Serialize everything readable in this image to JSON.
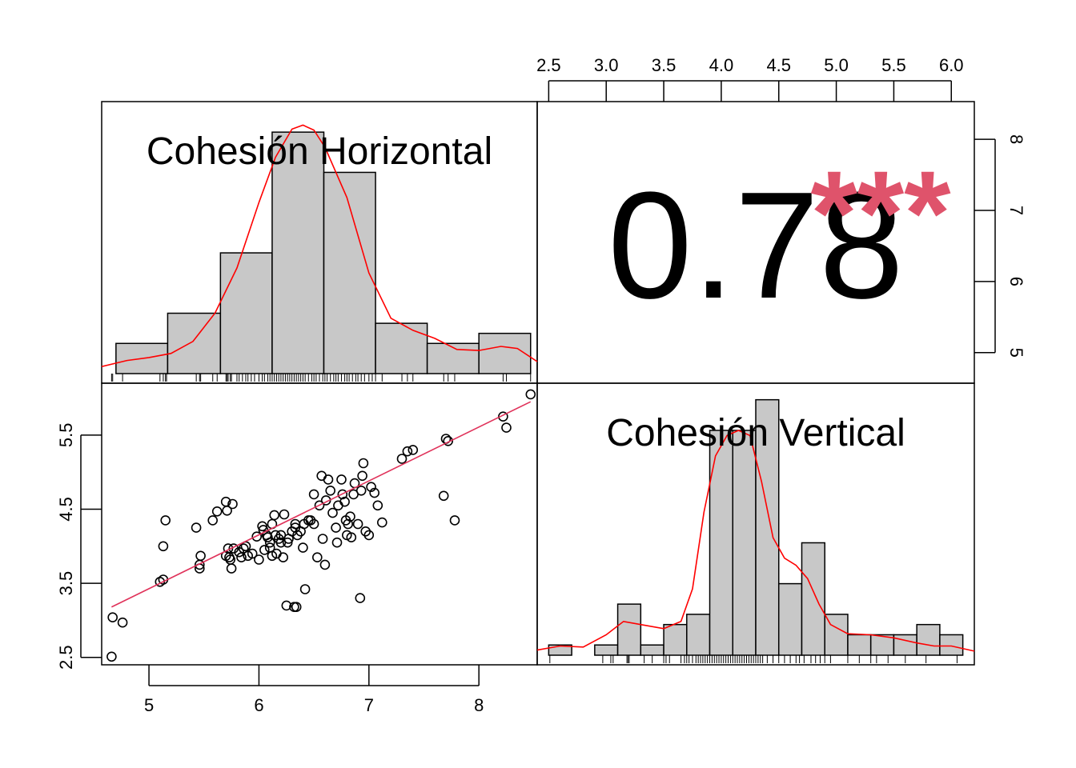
{
  "chart_data": {
    "type": "scatter-matrix",
    "variables": [
      "Cohesión Horizontal",
      "Cohesión Vertical"
    ],
    "correlation": {
      "value": "0.78",
      "stars": "***",
      "star_color": "#DF536B"
    },
    "colors": {
      "bar_fill": "#C8C8C8",
      "density": "#FF0000",
      "fit_line": "#DF536B",
      "points": "#000000"
    },
    "top_axis": {
      "ticks": [
        "2.5",
        "3.0",
        "3.5",
        "4.0",
        "4.5",
        "5.0",
        "5.5",
        "6.0"
      ],
      "range": [
        2.4,
        6.2
      ]
    },
    "right_axis": {
      "ticks": [
        "5",
        "6",
        "7",
        "8"
      ],
      "range": [
        4.57,
        8.53
      ]
    },
    "bottom_axis": {
      "ticks": [
        "5",
        "6",
        "7",
        "8"
      ],
      "range": [
        4.57,
        8.53
      ]
    },
    "left_axis": {
      "ticks": [
        "2.5",
        "3.5",
        "4.5",
        "5.5"
      ],
      "range": [
        2.4,
        6.2
      ]
    },
    "hist_horizontal": {
      "breaks": [
        4.7,
        5.17,
        5.65,
        6.12,
        6.59,
        7.06,
        7.53,
        8.0,
        8.47
      ],
      "counts": [
        3,
        6,
        12,
        24,
        20,
        5,
        3,
        4
      ],
      "count_max": 26,
      "density_curve": [
        [
          4.57,
          0.7
        ],
        [
          4.8,
          1.3
        ],
        [
          5.0,
          1.6
        ],
        [
          5.2,
          2.0
        ],
        [
          5.4,
          3.2
        ],
        [
          5.6,
          6.0
        ],
        [
          5.8,
          10.5
        ],
        [
          6.0,
          17.0
        ],
        [
          6.15,
          21.5
        ],
        [
          6.3,
          24.3
        ],
        [
          6.4,
          24.7
        ],
        [
          6.5,
          24.2
        ],
        [
          6.6,
          22.5
        ],
        [
          6.8,
          17.5
        ],
        [
          7.0,
          10.0
        ],
        [
          7.2,
          5.5
        ],
        [
          7.4,
          4.3
        ],
        [
          7.6,
          3.5
        ],
        [
          7.8,
          2.4
        ],
        [
          8.0,
          2.3
        ],
        [
          8.2,
          2.7
        ],
        [
          8.35,
          2.5
        ],
        [
          8.53,
          1.2
        ]
      ],
      "rug": [
        4.66,
        4.67,
        4.76,
        5.1,
        5.13,
        5.15,
        5.16,
        5.43,
        5.46,
        5.47,
        5.58,
        5.62,
        5.7,
        5.71,
        5.72,
        5.74,
        5.75,
        5.8,
        5.82,
        5.85,
        5.88,
        5.9,
        5.93,
        5.96,
        6.0,
        6.03,
        6.05,
        6.08,
        6.1,
        6.12,
        6.14,
        6.16,
        6.18,
        6.2,
        6.22,
        6.24,
        6.26,
        6.28,
        6.3,
        6.32,
        6.34,
        6.36,
        6.38,
        6.4,
        6.42,
        6.45,
        6.48,
        6.5,
        6.52,
        6.55,
        6.58,
        6.6,
        6.62,
        6.65,
        6.68,
        6.7,
        6.72,
        6.75,
        6.78,
        6.8,
        6.82,
        6.85,
        6.88,
        6.9,
        6.93,
        6.96,
        7.0,
        7.03,
        7.06,
        7.12,
        7.3,
        7.35,
        7.4,
        7.68,
        7.72,
        7.78,
        8.22,
        8.25,
        8.47
      ]
    },
    "hist_vertical": {
      "breaks": [
        2.5,
        2.7,
        2.9,
        3.1,
        3.3,
        3.5,
        3.7,
        3.9,
        4.1,
        4.3,
        4.5,
        4.7,
        4.9,
        5.1,
        5.3,
        5.5,
        5.7,
        5.9,
        6.1
      ],
      "counts": [
        1,
        0,
        1,
        5,
        1,
        3,
        4,
        22,
        22,
        25,
        7,
        11,
        4,
        2,
        2,
        2,
        3,
        2
      ],
      "count_max": 25.6,
      "density_curve": [
        [
          2.4,
          0.5
        ],
        [
          2.6,
          0.9
        ],
        [
          2.8,
          0.8
        ],
        [
          3.0,
          2.0
        ],
        [
          3.15,
          3.3
        ],
        [
          3.3,
          3.0
        ],
        [
          3.5,
          2.6
        ],
        [
          3.65,
          3.3
        ],
        [
          3.75,
          6.5
        ],
        [
          3.85,
          14.0
        ],
        [
          3.95,
          19.5
        ],
        [
          4.05,
          21.5
        ],
        [
          4.15,
          22.0
        ],
        [
          4.25,
          21.5
        ],
        [
          4.35,
          17.0
        ],
        [
          4.45,
          11.5
        ],
        [
          4.55,
          9.5
        ],
        [
          4.65,
          8.8
        ],
        [
          4.75,
          7.5
        ],
        [
          4.85,
          5.0
        ],
        [
          4.95,
          3.0
        ],
        [
          5.1,
          2.1
        ],
        [
          5.3,
          2.0
        ],
        [
          5.5,
          1.7
        ],
        [
          5.7,
          1.2
        ],
        [
          5.85,
          0.9
        ],
        [
          6.0,
          0.9
        ],
        [
          6.2,
          0.4
        ]
      ],
      "rug": [
        2.51,
        2.97,
        3.04,
        3.06,
        3.18,
        3.19,
        3.2,
        3.33,
        3.4,
        3.5,
        3.52,
        3.55,
        3.65,
        3.68,
        3.7,
        3.72,
        3.75,
        3.78,
        3.8,
        3.82,
        3.84,
        3.86,
        3.88,
        3.9,
        3.92,
        3.94,
        3.96,
        3.98,
        4.0,
        4.02,
        4.04,
        4.06,
        4.08,
        4.1,
        4.12,
        4.14,
        4.16,
        4.18,
        4.2,
        4.22,
        4.24,
        4.26,
        4.28,
        4.3,
        4.32,
        4.34,
        4.36,
        4.4,
        4.45,
        4.5,
        4.55,
        4.6,
        4.65,
        4.68,
        4.72,
        4.78,
        4.82,
        4.86,
        4.9,
        4.95,
        5.1,
        5.2,
        5.3,
        5.35,
        5.45,
        5.6,
        5.78,
        6.05
      ]
    },
    "scatter": {
      "points": [
        [
          4.66,
          2.51
        ],
        [
          4.67,
          3.04
        ],
        [
          4.76,
          2.97
        ],
        [
          5.1,
          3.52
        ],
        [
          5.13,
          3.55
        ],
        [
          5.13,
          4.0
        ],
        [
          5.15,
          4.35
        ],
        [
          5.43,
          4.25
        ],
        [
          5.46,
          3.75
        ],
        [
          5.46,
          3.7
        ],
        [
          5.47,
          3.87
        ],
        [
          5.58,
          4.35
        ],
        [
          5.62,
          4.47
        ],
        [
          5.7,
          4.6
        ],
        [
          5.71,
          4.48
        ],
        [
          5.72,
          3.97
        ],
        [
          5.7,
          3.87
        ],
        [
          5.73,
          3.85
        ],
        [
          5.74,
          3.82
        ],
        [
          5.75,
          3.7
        ],
        [
          5.76,
          4.57
        ],
        [
          5.77,
          3.97
        ],
        [
          5.82,
          3.92
        ],
        [
          5.84,
          3.85
        ],
        [
          5.86,
          3.97
        ],
        [
          5.88,
          4.0
        ],
        [
          5.9,
          3.87
        ],
        [
          5.94,
          3.9
        ],
        [
          5.98,
          4.13
        ],
        [
          6.0,
          3.82
        ],
        [
          6.03,
          4.27
        ],
        [
          6.04,
          4.22
        ],
        [
          6.05,
          3.95
        ],
        [
          6.07,
          4.15
        ],
        [
          6.08,
          4.12
        ],
        [
          6.1,
          3.98
        ],
        [
          6.1,
          4.05
        ],
        [
          6.12,
          3.87
        ],
        [
          6.12,
          4.3
        ],
        [
          6.14,
          4.42
        ],
        [
          6.15,
          4.15
        ],
        [
          6.16,
          3.9
        ],
        [
          6.18,
          4.1
        ],
        [
          6.2,
          4.05
        ],
        [
          6.2,
          4.15
        ],
        [
          6.22,
          3.85
        ],
        [
          6.23,
          4.43
        ],
        [
          6.25,
          3.2
        ],
        [
          6.26,
          4.05
        ],
        [
          6.27,
          4.1
        ],
        [
          6.3,
          4.2
        ],
        [
          6.32,
          3.18
        ],
        [
          6.33,
          4.3
        ],
        [
          6.33,
          4.25
        ],
        [
          6.34,
          3.18
        ],
        [
          6.35,
          4.15
        ],
        [
          6.38,
          4.2
        ],
        [
          6.4,
          3.98
        ],
        [
          6.41,
          4.3
        ],
        [
          6.42,
          3.42
        ],
        [
          6.45,
          4.35
        ],
        [
          6.47,
          4.35
        ],
        [
          6.5,
          4.3
        ],
        [
          6.5,
          4.7
        ],
        [
          6.53,
          3.85
        ],
        [
          6.55,
          4.55
        ],
        [
          6.57,
          4.95
        ],
        [
          6.58,
          4.1
        ],
        [
          6.6,
          3.75
        ],
        [
          6.61,
          4.62
        ],
        [
          6.63,
          4.9
        ],
        [
          6.65,
          4.75
        ],
        [
          6.67,
          4.45
        ],
        [
          6.7,
          4.25
        ],
        [
          6.71,
          4.05
        ],
        [
          6.72,
          4.55
        ],
        [
          6.75,
          4.9
        ],
        [
          6.76,
          4.7
        ],
        [
          6.78,
          4.6
        ],
        [
          6.79,
          4.35
        ],
        [
          6.8,
          4.15
        ],
        [
          6.81,
          4.3
        ],
        [
          6.83,
          4.4
        ],
        [
          6.84,
          4.12
        ],
        [
          6.86,
          4.7
        ],
        [
          6.87,
          4.85
        ],
        [
          6.9,
          4.3
        ],
        [
          6.92,
          3.3
        ],
        [
          6.93,
          4.75
        ],
        [
          6.94,
          4.95
        ],
        [
          6.95,
          5.12
        ],
        [
          6.97,
          4.2
        ],
        [
          7.0,
          4.15
        ],
        [
          7.02,
          4.8
        ],
        [
          7.05,
          4.72
        ],
        [
          7.08,
          4.55
        ],
        [
          7.12,
          4.32
        ],
        [
          7.3,
          5.18
        ],
        [
          7.35,
          5.28
        ],
        [
          7.4,
          5.3
        ],
        [
          7.68,
          4.68
        ],
        [
          7.7,
          5.45
        ],
        [
          7.72,
          5.42
        ],
        [
          7.78,
          4.35
        ],
        [
          8.22,
          5.75
        ],
        [
          8.25,
          5.6
        ],
        [
          8.47,
          6.05
        ]
      ],
      "fit_line": [
        [
          4.66,
          3.18
        ],
        [
          8.47,
          5.95
        ]
      ]
    }
  }
}
